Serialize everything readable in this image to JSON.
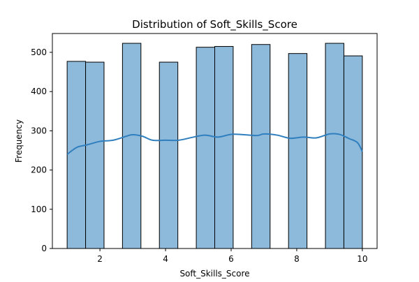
{
  "chart_data": {
    "type": "bar",
    "title": "Distribution of Soft_Skills_Score",
    "xlabel": "Soft_Skills_Score",
    "ylabel": "Frequency",
    "xlim": [
      0.55,
      10.45
    ],
    "ylim": [
      0,
      548
    ],
    "xticks": [
      2,
      4,
      6,
      8,
      10
    ],
    "yticks": [
      0,
      100,
      200,
      300,
      400,
      500
    ],
    "grid": false,
    "bin_edges": [
      1.0,
      1.5625,
      2.125,
      2.6875,
      3.25,
      3.8125,
      4.375,
      4.9375,
      5.5,
      6.0625,
      6.625,
      7.1875,
      7.75,
      8.3125,
      8.875,
      9.4375,
      10.0
    ],
    "counts": [
      477,
      475,
      0,
      523,
      0,
      475,
      0,
      513,
      515,
      0,
      520,
      0,
      497,
      0,
      523,
      491
    ],
    "bar_color": "#8DB9DB",
    "bar_edge_color": "#000000",
    "kde": {
      "name": "KDE",
      "color": "#2F7FBF",
      "x": [
        1.0,
        1.3,
        1.6,
        2.0,
        2.4,
        2.8,
        3.0,
        3.3,
        3.6,
        4.0,
        4.4,
        4.8,
        5.2,
        5.6,
        6.0,
        6.4,
        6.8,
        7.0,
        7.4,
        7.8,
        8.2,
        8.6,
        9.0,
        9.3,
        9.6,
        9.85,
        10.0
      ],
      "y": [
        240,
        258,
        264,
        273,
        276,
        286,
        290,
        286,
        276,
        276,
        276,
        283,
        289,
        284,
        291,
        290,
        288,
        292,
        289,
        281,
        284,
        282,
        292,
        291,
        280,
        270,
        247
      ]
    }
  }
}
